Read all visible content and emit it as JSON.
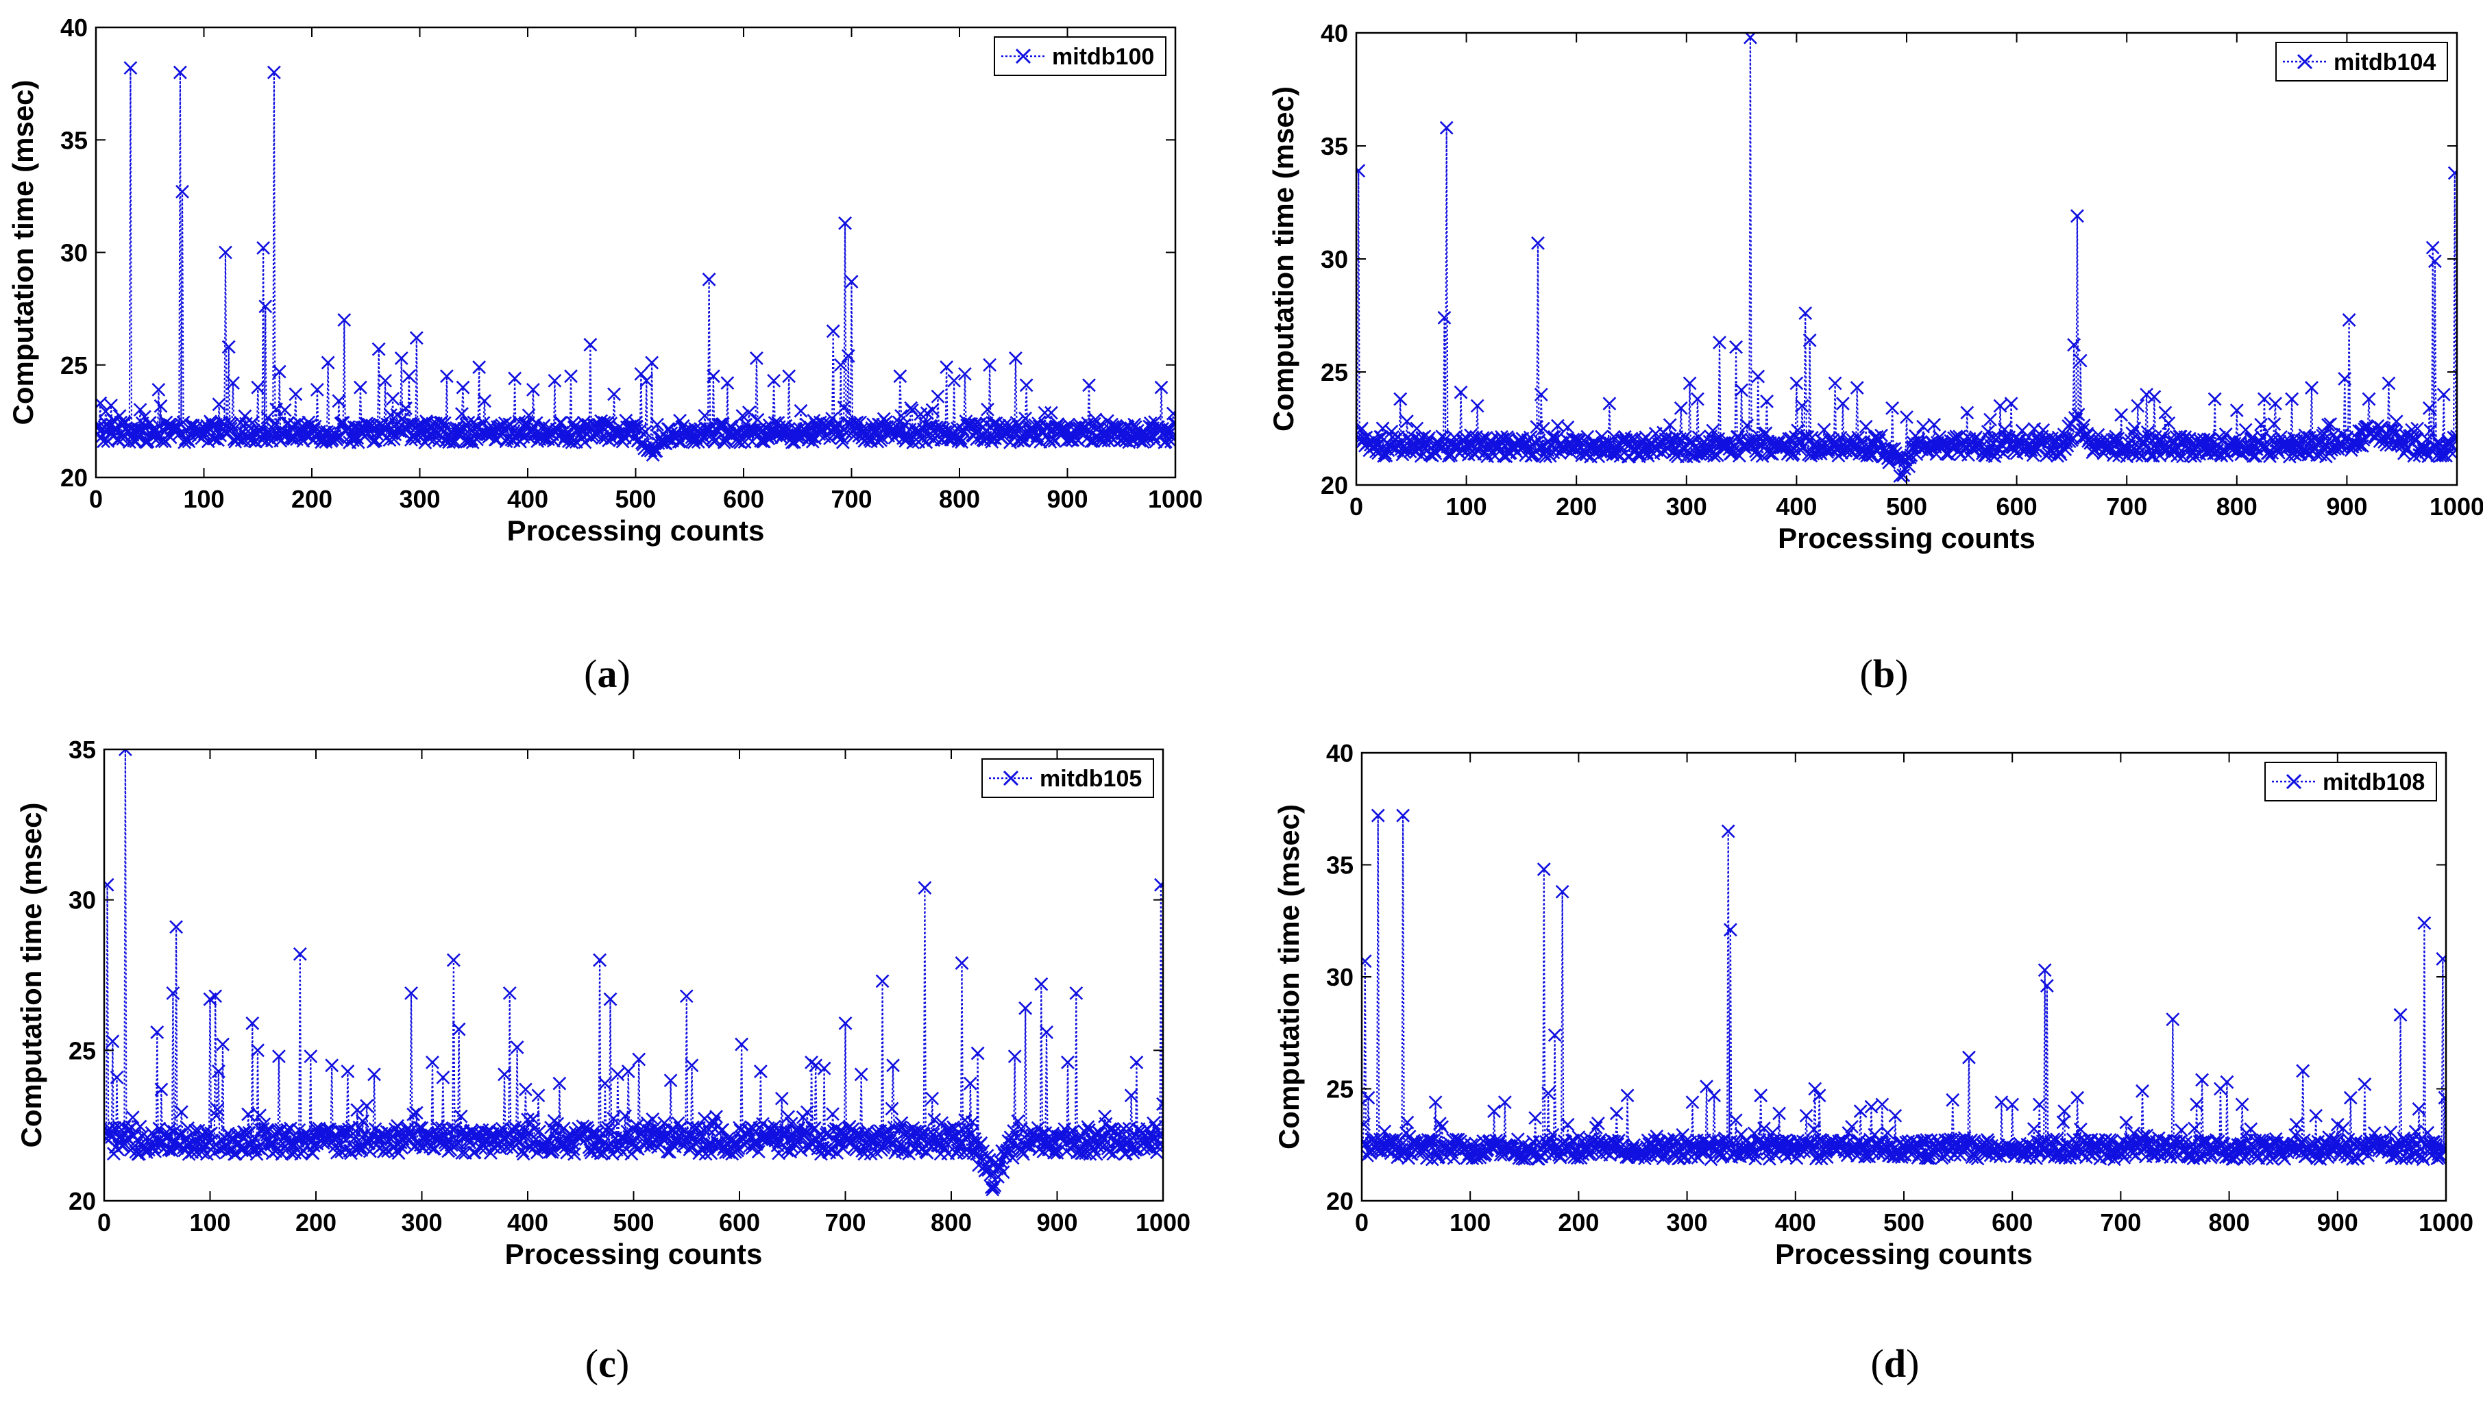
{
  "chart_data": [
    {
      "type": "line",
      "panel_label": "(a)",
      "title": "",
      "legend": "mitdb100",
      "legend_position": "top-right",
      "xlabel": "Processing counts",
      "ylabel": "Computation time (msec)",
      "xlim": [
        0,
        1000
      ],
      "ylim": [
        20,
        40
      ],
      "xticks": [
        "0",
        "100",
        "200",
        "300",
        "400",
        "500",
        "600",
        "700",
        "800",
        "900",
        "1000"
      ],
      "yticks": [
        "20",
        "25",
        "30",
        "35",
        "40"
      ],
      "line_color": "#1010E0",
      "baseline": 22.0,
      "dips": [
        [
          500,
          530,
          21.2
        ]
      ],
      "spikes": [
        [
          4,
          23.3
        ],
        [
          14,
          23.2
        ],
        [
          32,
          38.2
        ],
        [
          58,
          23.9
        ],
        [
          78,
          38.0
        ],
        [
          80,
          32.7
        ],
        [
          120,
          30.0
        ],
        [
          123,
          25.8
        ],
        [
          127,
          24.2
        ],
        [
          150,
          24.0
        ],
        [
          155,
          30.2
        ],
        [
          157,
          27.6
        ],
        [
          165,
          38.0
        ],
        [
          170,
          24.7
        ],
        [
          185,
          23.7
        ],
        [
          205,
          23.9
        ],
        [
          215,
          25.1
        ],
        [
          225,
          23.4
        ],
        [
          230,
          27.0
        ],
        [
          245,
          24.0
        ],
        [
          262,
          25.7
        ],
        [
          268,
          24.3
        ],
        [
          275,
          23.5
        ],
        [
          283,
          25.3
        ],
        [
          290,
          24.5
        ],
        [
          297,
          26.2
        ],
        [
          325,
          24.5
        ],
        [
          340,
          24.0
        ],
        [
          355,
          24.9
        ],
        [
          360,
          23.4
        ],
        [
          388,
          24.4
        ],
        [
          405,
          23.9
        ],
        [
          425,
          24.3
        ],
        [
          440,
          24.5
        ],
        [
          458,
          25.9
        ],
        [
          480,
          23.7
        ],
        [
          505,
          24.6
        ],
        [
          510,
          24.3
        ],
        [
          515,
          25.1
        ],
        [
          568,
          28.8
        ],
        [
          572,
          24.5
        ],
        [
          585,
          24.2
        ],
        [
          612,
          25.3
        ],
        [
          628,
          24.3
        ],
        [
          642,
          24.5
        ],
        [
          683,
          26.5
        ],
        [
          690,
          25.0
        ],
        [
          694,
          31.3
        ],
        [
          697,
          25.4
        ],
        [
          700,
          28.7
        ],
        [
          745,
          24.5
        ],
        [
          780,
          23.6
        ],
        [
          788,
          24.9
        ],
        [
          795,
          24.3
        ],
        [
          805,
          24.6
        ],
        [
          828,
          25.0
        ],
        [
          852,
          25.3
        ],
        [
          862,
          24.1
        ],
        [
          920,
          24.1
        ],
        [
          987,
          24.0
        ]
      ]
    },
    {
      "type": "line",
      "panel_label": "(b)",
      "title": "",
      "legend": "mitdb104",
      "legend_position": "top-right",
      "xlabel": "Processing counts",
      "ylabel": "Computation time (msec)",
      "xlim": [
        0,
        1000
      ],
      "ylim": [
        20,
        40
      ],
      "xticks": [
        "0",
        "100",
        "200",
        "300",
        "400",
        "500",
        "600",
        "700",
        "800",
        "900",
        "1000"
      ],
      "yticks": [
        "20",
        "25",
        "30",
        "35",
        "40"
      ],
      "line_color": "#1010E0",
      "baseline": 21.7,
      "dips": [
        [
          480,
          510,
          20.7
        ],
        [
          640,
          670,
          22.8
        ],
        [
          890,
          960,
          22.3
        ]
      ],
      "spikes": [
        [
          2,
          33.9
        ],
        [
          5,
          22.5
        ],
        [
          40,
          23.8
        ],
        [
          55,
          22.5
        ],
        [
          80,
          27.4
        ],
        [
          82,
          35.8
        ],
        [
          95,
          24.1
        ],
        [
          110,
          23.5
        ],
        [
          165,
          30.7
        ],
        [
          168,
          24.0
        ],
        [
          230,
          23.6
        ],
        [
          295,
          23.4
        ],
        [
          303,
          24.5
        ],
        [
          310,
          23.8
        ],
        [
          330,
          26.3
        ],
        [
          345,
          26.1
        ],
        [
          350,
          24.2
        ],
        [
          358,
          39.8
        ],
        [
          365,
          24.8
        ],
        [
          373,
          23.7
        ],
        [
          400,
          24.5
        ],
        [
          405,
          23.5
        ],
        [
          408,
          27.6
        ],
        [
          412,
          26.4
        ],
        [
          435,
          24.5
        ],
        [
          442,
          23.6
        ],
        [
          455,
          24.3
        ],
        [
          487,
          23.4
        ],
        [
          500,
          23.0
        ],
        [
          555,
          23.2
        ],
        [
          585,
          23.5
        ],
        [
          595,
          23.6
        ],
        [
          652,
          26.2
        ],
        [
          655,
          31.9
        ],
        [
          658,
          25.5
        ],
        [
          695,
          23.1
        ],
        [
          710,
          23.5
        ],
        [
          718,
          24.0
        ],
        [
          725,
          23.9
        ],
        [
          735,
          23.2
        ],
        [
          780,
          23.8
        ],
        [
          800,
          23.3
        ],
        [
          825,
          23.8
        ],
        [
          835,
          23.6
        ],
        [
          850,
          23.8
        ],
        [
          868,
          24.3
        ],
        [
          898,
          24.7
        ],
        [
          902,
          27.3
        ],
        [
          920,
          23.8
        ],
        [
          938,
          24.5
        ],
        [
          975,
          23.4
        ],
        [
          978,
          30.5
        ],
        [
          980,
          29.9
        ],
        [
          988,
          24.0
        ],
        [
          998,
          33.8
        ]
      ]
    },
    {
      "type": "line",
      "panel_label": "(c)",
      "title": "",
      "legend": "mitdb105",
      "legend_position": "top-right",
      "xlabel": "Processing counts",
      "ylabel": "Computation time (msec)",
      "xlim": [
        0,
        1000
      ],
      "ylim": [
        20,
        35
      ],
      "xticks": [
        "0",
        "100",
        "200",
        "300",
        "400",
        "500",
        "600",
        "700",
        "800",
        "900",
        "1000"
      ],
      "yticks": [
        "20",
        "25",
        "30",
        "35"
      ],
      "line_color": "#1010E0",
      "baseline": 22.0,
      "dips": [
        [
          820,
          860,
          20.7
        ]
      ],
      "spikes": [
        [
          3,
          30.5
        ],
        [
          8,
          25.3
        ],
        [
          12,
          24.1
        ],
        [
          20,
          35.0
        ],
        [
          50,
          25.6
        ],
        [
          54,
          23.7
        ],
        [
          65,
          26.9
        ],
        [
          68,
          29.1
        ],
        [
          100,
          26.7
        ],
        [
          105,
          26.8
        ],
        [
          108,
          24.3
        ],
        [
          112,
          25.2
        ],
        [
          140,
          25.9
        ],
        [
          145,
          25.0
        ],
        [
          165,
          24.8
        ],
        [
          185,
          28.2
        ],
        [
          195,
          24.8
        ],
        [
          215,
          24.5
        ],
        [
          230,
          24.3
        ],
        [
          255,
          24.2
        ],
        [
          290,
          26.9
        ],
        [
          310,
          24.6
        ],
        [
          320,
          24.1
        ],
        [
          330,
          28.0
        ],
        [
          335,
          25.7
        ],
        [
          378,
          24.2
        ],
        [
          383,
          26.9
        ],
        [
          390,
          25.1
        ],
        [
          398,
          23.7
        ],
        [
          410,
          23.5
        ],
        [
          430,
          23.9
        ],
        [
          468,
          28.0
        ],
        [
          473,
          23.9
        ],
        [
          478,
          26.7
        ],
        [
          485,
          24.2
        ],
        [
          495,
          24.3
        ],
        [
          505,
          24.7
        ],
        [
          535,
          24.0
        ],
        [
          550,
          26.8
        ],
        [
          555,
          24.5
        ],
        [
          602,
          25.2
        ],
        [
          620,
          24.3
        ],
        [
          640,
          23.4
        ],
        [
          668,
          24.6
        ],
        [
          672,
          24.5
        ],
        [
          680,
          24.4
        ],
        [
          700,
          25.9
        ],
        [
          715,
          24.2
        ],
        [
          735,
          27.3
        ],
        [
          745,
          24.5
        ],
        [
          775,
          30.4
        ],
        [
          782,
          23.4
        ],
        [
          810,
          27.9
        ],
        [
          818,
          23.9
        ],
        [
          825,
          24.9
        ],
        [
          860,
          24.8
        ],
        [
          870,
          26.4
        ],
        [
          885,
          27.2
        ],
        [
          890,
          25.6
        ],
        [
          910,
          24.6
        ],
        [
          918,
          26.9
        ],
        [
          970,
          23.5
        ],
        [
          975,
          24.6
        ],
        [
          998,
          30.5
        ]
      ]
    },
    {
      "type": "line",
      "panel_label": "(d)",
      "title": "",
      "legend": "mitdb108",
      "legend_position": "top-right",
      "xlabel": "Processing counts",
      "ylabel": "Computation time (msec)",
      "xlim": [
        0,
        1000
      ],
      "ylim": [
        20,
        40
      ],
      "xticks": [
        "0",
        "100",
        "200",
        "300",
        "400",
        "500",
        "600",
        "700",
        "800",
        "900",
        "1000"
      ],
      "yticks": [
        "20",
        "25",
        "30",
        "35",
        "40"
      ],
      "line_color": "#1010E0",
      "baseline": 22.3,
      "dips": [],
      "spikes": [
        [
          3,
          30.7
        ],
        [
          6,
          24.6
        ],
        [
          15,
          37.2
        ],
        [
          38,
          37.2
        ],
        [
          42,
          23.5
        ],
        [
          68,
          24.4
        ],
        [
          122,
          24.0
        ],
        [
          132,
          24.4
        ],
        [
          160,
          23.7
        ],
        [
          168,
          34.8
        ],
        [
          172,
          24.8
        ],
        [
          178,
          27.4
        ],
        [
          185,
          33.8
        ],
        [
          190,
          23.4
        ],
        [
          235,
          23.9
        ],
        [
          245,
          24.7
        ],
        [
          305,
          24.4
        ],
        [
          318,
          25.1
        ],
        [
          325,
          24.7
        ],
        [
          338,
          36.5
        ],
        [
          340,
          32.1
        ],
        [
          345,
          23.6
        ],
        [
          368,
          24.7
        ],
        [
          385,
          23.9
        ],
        [
          410,
          23.8
        ],
        [
          418,
          25.0
        ],
        [
          422,
          24.7
        ],
        [
          460,
          24.0
        ],
        [
          470,
          24.2
        ],
        [
          480,
          24.3
        ],
        [
          492,
          23.8
        ],
        [
          545,
          24.5
        ],
        [
          560,
          26.4
        ],
        [
          590,
          24.4
        ],
        [
          600,
          24.3
        ],
        [
          625,
          24.3
        ],
        [
          630,
          30.3
        ],
        [
          632,
          29.6
        ],
        [
          648,
          24.0
        ],
        [
          660,
          24.6
        ],
        [
          705,
          23.5
        ],
        [
          720,
          24.9
        ],
        [
          748,
          28.1
        ],
        [
          770,
          24.3
        ],
        [
          775,
          25.4
        ],
        [
          792,
          25.0
        ],
        [
          798,
          25.3
        ],
        [
          812,
          24.3
        ],
        [
          862,
          23.4
        ],
        [
          868,
          25.8
        ],
        [
          880,
          23.8
        ],
        [
          900,
          23.4
        ],
        [
          912,
          24.6
        ],
        [
          925,
          25.2
        ],
        [
          958,
          28.3
        ],
        [
          975,
          24.1
        ],
        [
          980,
          32.4
        ],
        [
          997,
          30.8
        ],
        [
          999,
          24.6
        ]
      ]
    }
  ]
}
